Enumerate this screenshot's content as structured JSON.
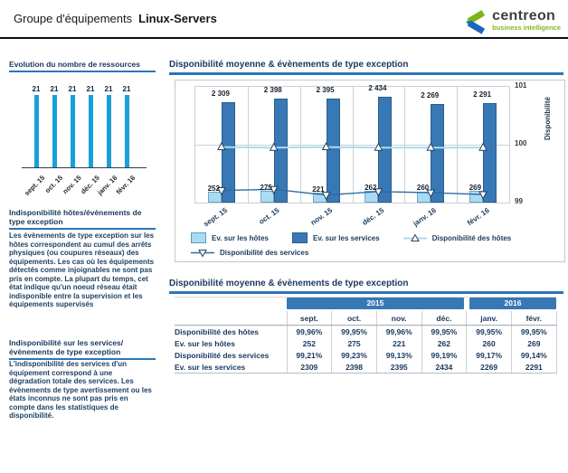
{
  "header": {
    "title_prefix": "Groupe d'équipements",
    "title_name": "Linux-Servers",
    "logo": {
      "brand": "centreon",
      "tagline": "business intelligence"
    }
  },
  "sidebar": {
    "sections": [
      {
        "title": "Indisponibilité  hôtes/évènements de type exception",
        "body": "Les évènements de type exception sur les hôtes correspondent au cumul des arrêts physiques (ou coupures réseaux) des équipements. Les cas où les équipements détectés comme injoignables ne sont pas pris en compte. La plupart du temps, cet état indique qu'un noeud réseau était indisponible entre la supervision et les équipements supervisés"
      },
      {
        "title": "Indisponibilité sur les services/ évènements de type exception",
        "body": "L'indisponibilité des services d'un équipement correspond à une dégradation totale des services. Les évènements de type avertissement ou les états inconnus ne sont pas pris en compte dans les statistiques de disponibilité."
      }
    ]
  },
  "colors": {
    "steel_blue": "#3878b4",
    "light_blue": "#a9dcf2",
    "cyan_bar": "#18a0da",
    "underline_blue": "#2e75b6",
    "navy_text": "#17375e",
    "logo_green": "#7db517",
    "logo_blue": "#1a66c0",
    "logo_teal": "#0b8a99",
    "tagline_green": "#83b81a"
  },
  "chart_data": [
    {
      "type": "bar",
      "title": "Evolution du nombre de ressources",
      "categories": [
        "sept. 15",
        "oct. 15",
        "nov. 15",
        "déc. 15",
        "janv. 16",
        "févr. 16"
      ],
      "values": [
        21,
        21,
        21,
        21,
        21,
        21
      ],
      "bar_color": "#18a0da",
      "ylim": [
        0,
        21
      ],
      "grid": false,
      "value_labels": true
    },
    {
      "type": "bar",
      "subtype": "bar+line combo",
      "title": "Disponibilité moyenne & évènements de type exception",
      "categories": [
        "sept. 15",
        "oct. 15",
        "nov. 15",
        "déc. 15",
        "janv. 16",
        "févr. 16"
      ],
      "series": [
        {
          "name": "Ev. sur les hôtes",
          "type": "bar",
          "color": "#a9dcf2",
          "values": [
            252,
            275,
            221,
            262,
            260,
            269
          ]
        },
        {
          "name": "Ev. sur les services",
          "type": "bar",
          "color": "#3878b4",
          "values": [
            2309,
            2398,
            2395,
            2434,
            2269,
            2291
          ]
        },
        {
          "name": "Disponibilité des hôtes",
          "type": "line",
          "marker": "triangle-up",
          "color": "#a9dcf2",
          "values": [
            99.96,
            99.95,
            99.96,
            99.95,
            99.95,
            99.95
          ]
        },
        {
          "name": "Disponibilité des services",
          "type": "line",
          "marker": "triangle-down",
          "color": "#2e6da4",
          "values": [
            99.21,
            99.23,
            99.13,
            99.19,
            99.17,
            99.14
          ]
        }
      ],
      "bar_labels": [
        "2 309",
        "2 398",
        "2 395",
        "2 434",
        "2 269",
        "2 291"
      ],
      "host_bar_labels": [
        "252",
        "275",
        "221",
        "262",
        "260",
        "269"
      ],
      "bar_axis_max": 2660,
      "right_axis": {
        "label": "Disponibilité",
        "ticks": [
          101,
          100,
          99
        ],
        "range": [
          99,
          101
        ]
      },
      "grid": true,
      "legend_position": "bottom"
    },
    {
      "type": "table",
      "title": "Disponibilité moyenne & évènements de type exception",
      "year_groups": [
        {
          "label": "2015",
          "span": 4
        },
        {
          "label": "2016",
          "span": 2
        }
      ],
      "columns": [
        "sept.",
        "oct.",
        "nov.",
        "déc.",
        "janv.",
        "févr."
      ],
      "rows": [
        {
          "label": "Disponibilité des hôtes",
          "values": [
            "99,96%",
            "99,95%",
            "99,96%",
            "99,95%",
            "99,95%",
            "99,95%"
          ]
        },
        {
          "label": "Ev. sur les hôtes",
          "values": [
            "252",
            "275",
            "221",
            "262",
            "260",
            "269"
          ]
        },
        {
          "label": "Disponibilité des services",
          "values": [
            "99,21%",
            "99,23%",
            "99,13%",
            "99,19%",
            "99,17%",
            "99,14%"
          ]
        },
        {
          "label": "Ev. sur les services",
          "values": [
            "2309",
            "2398",
            "2395",
            "2434",
            "2269",
            "2291"
          ]
        }
      ]
    }
  ]
}
